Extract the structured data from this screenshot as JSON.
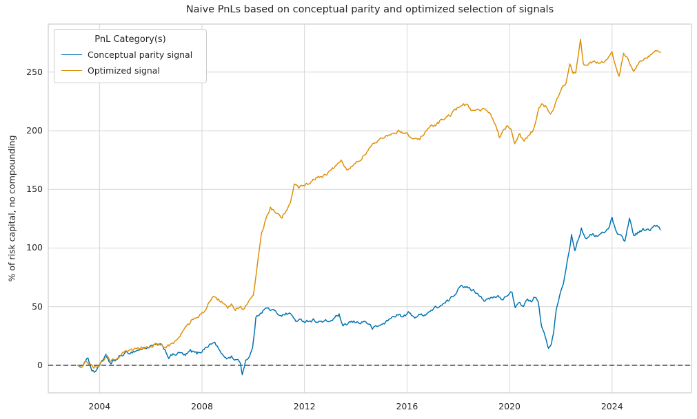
{
  "chart_data": {
    "type": "line",
    "title": "Naive PnLs based on conceptual parity and optimized selection of signals",
    "xlabel": "",
    "ylabel": "% of risk capital, no compounding",
    "legend_title": "PnL Category(s)",
    "legend_position": "upper left",
    "grid": true,
    "xlim": [
      2002.0,
      2027.1
    ],
    "ylim": [
      -23.5,
      290.9
    ],
    "x_ticks": [
      2004,
      2008,
      2012,
      2016,
      2020,
      2024
    ],
    "y_ticks": [
      0,
      50,
      100,
      150,
      200,
      250
    ],
    "annotations": [
      {
        "type": "hline",
        "y": 0,
        "style": "dashed",
        "color": "#000000"
      }
    ],
    "colors": {
      "grid": "#d6d6d6",
      "spine": "#cccccc",
      "text": "#262626",
      "background": "#ffffff"
    },
    "series": [
      {
        "name": "Conceptual parity signal",
        "color": "#0173b2",
        "points": [
          [
            2003.15,
            0
          ],
          [
            2003.3,
            -2
          ],
          [
            2003.45,
            5
          ],
          [
            2003.55,
            6.5
          ],
          [
            2003.7,
            -4
          ],
          [
            2003.8,
            -6.5
          ],
          [
            2003.9,
            -3
          ],
          [
            2004.0,
            1
          ],
          [
            2004.15,
            4
          ],
          [
            2004.25,
            7.5
          ],
          [
            2004.45,
            1
          ],
          [
            2004.65,
            5
          ],
          [
            2004.9,
            9
          ],
          [
            2005.2,
            11
          ],
          [
            2005.5,
            13
          ],
          [
            2005.8,
            15
          ],
          [
            2006.1,
            16.5
          ],
          [
            2006.35,
            17.5
          ],
          [
            2006.55,
            13.5
          ],
          [
            2006.7,
            7
          ],
          [
            2006.95,
            9.5
          ],
          [
            2007.15,
            10.5
          ],
          [
            2007.35,
            8
          ],
          [
            2007.55,
            12
          ],
          [
            2007.8,
            10
          ],
          [
            2008.0,
            12.5
          ],
          [
            2008.25,
            17
          ],
          [
            2008.5,
            19.5
          ],
          [
            2008.65,
            14
          ],
          [
            2008.8,
            8
          ],
          [
            2009.0,
            6
          ],
          [
            2009.15,
            7.5
          ],
          [
            2009.35,
            4
          ],
          [
            2009.5,
            2.5
          ],
          [
            2009.57,
            -8
          ],
          [
            2009.7,
            4.5
          ],
          [
            2009.85,
            8
          ],
          [
            2009.97,
            14
          ],
          [
            2010.1,
            40
          ],
          [
            2010.3,
            46
          ],
          [
            2010.5,
            48.5
          ],
          [
            2010.75,
            47
          ],
          [
            2010.95,
            44
          ],
          [
            2011.15,
            43
          ],
          [
            2011.4,
            44.5
          ],
          [
            2011.7,
            37.5
          ],
          [
            2012.0,
            38
          ],
          [
            2012.35,
            38.5
          ],
          [
            2012.65,
            37
          ],
          [
            2013.0,
            37.5
          ],
          [
            2013.35,
            43
          ],
          [
            2013.5,
            32
          ],
          [
            2013.75,
            36.5
          ],
          [
            2014.1,
            36.5
          ],
          [
            2014.4,
            37.5
          ],
          [
            2014.65,
            31.5
          ],
          [
            2014.95,
            34
          ],
          [
            2015.25,
            38
          ],
          [
            2015.6,
            43.5
          ],
          [
            2015.85,
            41
          ],
          [
            2016.05,
            44.5
          ],
          [
            2016.3,
            41.5
          ],
          [
            2016.6,
            43
          ],
          [
            2016.9,
            46
          ],
          [
            2017.15,
            49.5
          ],
          [
            2017.45,
            52
          ],
          [
            2017.65,
            55.5
          ],
          [
            2017.85,
            60
          ],
          [
            2018.0,
            66
          ],
          [
            2018.12,
            70
          ],
          [
            2018.3,
            66
          ],
          [
            2018.55,
            64.5
          ],
          [
            2018.8,
            61
          ],
          [
            2019.05,
            55
          ],
          [
            2019.3,
            57
          ],
          [
            2019.55,
            58.5
          ],
          [
            2019.75,
            56
          ],
          [
            2019.95,
            61.5
          ],
          [
            2020.1,
            62
          ],
          [
            2020.22,
            47.5
          ],
          [
            2020.4,
            53.5
          ],
          [
            2020.55,
            50
          ],
          [
            2020.7,
            57
          ],
          [
            2020.85,
            54
          ],
          [
            2021.0,
            58.5
          ],
          [
            2021.12,
            53
          ],
          [
            2021.25,
            33
          ],
          [
            2021.4,
            23
          ],
          [
            2021.52,
            15
          ],
          [
            2021.63,
            18
          ],
          [
            2021.72,
            27
          ],
          [
            2021.82,
            47
          ],
          [
            2021.95,
            58
          ],
          [
            2022.1,
            70
          ],
          [
            2022.25,
            88
          ],
          [
            2022.42,
            111
          ],
          [
            2022.55,
            99
          ],
          [
            2022.68,
            108
          ],
          [
            2022.8,
            117
          ],
          [
            2022.95,
            110
          ],
          [
            2023.1,
            109
          ],
          [
            2023.25,
            112
          ],
          [
            2023.45,
            110
          ],
          [
            2023.65,
            113
          ],
          [
            2023.85,
            116
          ],
          [
            2024.0,
            125.5
          ],
          [
            2024.18,
            114
          ],
          [
            2024.35,
            110
          ],
          [
            2024.5,
            106
          ],
          [
            2024.68,
            125
          ],
          [
            2024.85,
            111
          ],
          [
            2025.05,
            114
          ],
          [
            2025.25,
            116
          ],
          [
            2025.45,
            115
          ],
          [
            2025.65,
            118
          ],
          [
            2025.75,
            119.5
          ],
          [
            2025.88,
            115.5
          ]
        ]
      },
      {
        "name": "Optimized signal",
        "color": "#de8f05",
        "points": [
          [
            2003.15,
            0
          ],
          [
            2003.3,
            -1
          ],
          [
            2003.45,
            4
          ],
          [
            2003.6,
            2
          ],
          [
            2003.78,
            -2.5
          ],
          [
            2003.9,
            -1
          ],
          [
            2004.0,
            2
          ],
          [
            2004.15,
            5
          ],
          [
            2004.25,
            8
          ],
          [
            2004.45,
            3.5
          ],
          [
            2004.7,
            7
          ],
          [
            2004.95,
            10
          ],
          [
            2005.25,
            12.5
          ],
          [
            2005.55,
            14
          ],
          [
            2005.85,
            16
          ],
          [
            2006.1,
            17
          ],
          [
            2006.35,
            18
          ],
          [
            2006.55,
            15
          ],
          [
            2006.8,
            17
          ],
          [
            2007.1,
            24
          ],
          [
            2007.3,
            30
          ],
          [
            2007.45,
            34.5
          ],
          [
            2007.7,
            40.5
          ],
          [
            2008.0,
            44.5
          ],
          [
            2008.2,
            50
          ],
          [
            2008.45,
            59
          ],
          [
            2008.6,
            56
          ],
          [
            2008.8,
            54.5
          ],
          [
            2009.0,
            47.5
          ],
          [
            2009.15,
            51
          ],
          [
            2009.3,
            48
          ],
          [
            2009.5,
            49.5
          ],
          [
            2009.62,
            48
          ],
          [
            2009.78,
            52.5
          ],
          [
            2009.9,
            56
          ],
          [
            2010.0,
            60
          ],
          [
            2010.12,
            78
          ],
          [
            2010.22,
            96
          ],
          [
            2010.32,
            113
          ],
          [
            2010.45,
            122
          ],
          [
            2010.55,
            128
          ],
          [
            2010.67,
            134
          ],
          [
            2010.82,
            131
          ],
          [
            2010.97,
            128.5
          ],
          [
            2011.12,
            126
          ],
          [
            2011.28,
            131
          ],
          [
            2011.45,
            140
          ],
          [
            2011.6,
            155
          ],
          [
            2011.78,
            152
          ],
          [
            2012.0,
            152.5
          ],
          [
            2012.25,
            156
          ],
          [
            2012.5,
            160
          ],
          [
            2012.78,
            162
          ],
          [
            2013.0,
            164.5
          ],
          [
            2013.2,
            170
          ],
          [
            2013.42,
            174
          ],
          [
            2013.65,
            166.5
          ],
          [
            2013.9,
            172
          ],
          [
            2014.12,
            175
          ],
          [
            2014.4,
            181
          ],
          [
            2014.65,
            187
          ],
          [
            2014.9,
            192
          ],
          [
            2015.15,
            196
          ],
          [
            2015.45,
            198.5
          ],
          [
            2015.75,
            199.5
          ],
          [
            2016.0,
            198
          ],
          [
            2016.28,
            192
          ],
          [
            2016.5,
            193.5
          ],
          [
            2016.72,
            199
          ],
          [
            2016.95,
            204
          ],
          [
            2017.15,
            205.5
          ],
          [
            2017.4,
            210
          ],
          [
            2017.7,
            213
          ],
          [
            2018.0,
            220
          ],
          [
            2018.15,
            223
          ],
          [
            2018.3,
            222
          ],
          [
            2018.5,
            218
          ],
          [
            2018.78,
            216.5
          ],
          [
            2019.0,
            218
          ],
          [
            2019.22,
            215.5
          ],
          [
            2019.42,
            207
          ],
          [
            2019.6,
            194
          ],
          [
            2019.8,
            201
          ],
          [
            2019.92,
            204.5
          ],
          [
            2020.05,
            202
          ],
          [
            2020.2,
            190
          ],
          [
            2020.4,
            197
          ],
          [
            2020.57,
            190.5
          ],
          [
            2020.72,
            195
          ],
          [
            2020.88,
            199.5
          ],
          [
            2021.0,
            206
          ],
          [
            2021.15,
            219
          ],
          [
            2021.3,
            223
          ],
          [
            2021.45,
            220
          ],
          [
            2021.6,
            213.5
          ],
          [
            2021.75,
            221
          ],
          [
            2021.9,
            229
          ],
          [
            2022.05,
            237
          ],
          [
            2022.2,
            240
          ],
          [
            2022.35,
            256
          ],
          [
            2022.48,
            250
          ],
          [
            2022.58,
            249
          ],
          [
            2022.68,
            263
          ],
          [
            2022.77,
            277.5
          ],
          [
            2022.88,
            258
          ],
          [
            2023.0,
            255
          ],
          [
            2023.15,
            257.5
          ],
          [
            2023.35,
            259
          ],
          [
            2023.55,
            257
          ],
          [
            2023.78,
            261
          ],
          [
            2024.0,
            266
          ],
          [
            2024.15,
            255
          ],
          [
            2024.27,
            245.5
          ],
          [
            2024.45,
            266
          ],
          [
            2024.62,
            262
          ],
          [
            2024.85,
            251
          ],
          [
            2025.1,
            260
          ],
          [
            2025.3,
            262.5
          ],
          [
            2025.5,
            265
          ],
          [
            2025.68,
            268
          ],
          [
            2025.9,
            267
          ]
        ]
      }
    ]
  }
}
